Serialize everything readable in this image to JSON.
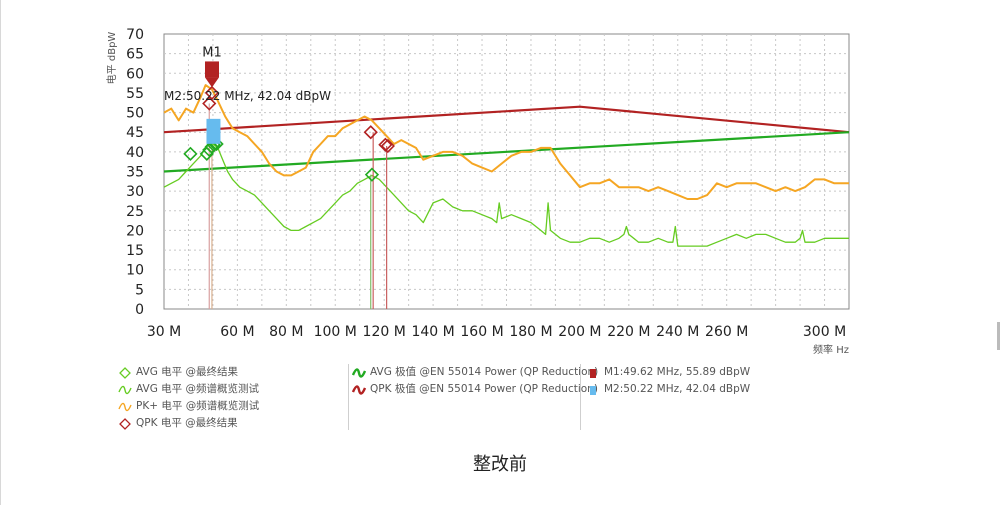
{
  "caption": "整改前",
  "chart_data": {
    "type": "line",
    "ylabel": "电平 dBpW",
    "xlabel": "频率 Hz",
    "xlim": [
      30,
      310
    ],
    "ylim": [
      0,
      70
    ],
    "x_ticks": [
      30,
      60,
      80,
      100,
      120,
      140,
      160,
      180,
      200,
      220,
      240,
      260,
      300
    ],
    "x_tick_labels": [
      "30 M",
      "60 M",
      "80 M",
      "100 M",
      "120 M",
      "140 M",
      "160 M",
      "180 M",
      "200 M",
      "220 M",
      "240 M",
      "260 M",
      "300 M"
    ],
    "y_ticks": [
      0,
      5,
      10,
      15,
      20,
      25,
      30,
      35,
      40,
      45,
      50,
      55,
      60,
      65,
      70
    ],
    "grid": true,
    "colors": {
      "avg": "#66cc22",
      "pk": "#f5a623",
      "qpk": "#b22222",
      "avg_limit": "#22aa22",
      "qp_limit": "#b22222",
      "m2": "#66bbee"
    },
    "series": [
      {
        "name": "PK+ 电平 @频谱概览测试",
        "x": [
          30,
          33,
          36,
          39,
          42,
          45,
          47,
          49.6,
          52,
          55,
          58,
          61,
          64,
          67,
          70,
          73,
          76,
          79,
          82,
          85,
          88,
          91,
          94,
          97,
          100,
          103,
          106,
          109,
          112,
          115,
          118,
          121,
          124,
          127,
          130,
          133,
          136,
          140,
          144,
          148,
          152,
          156,
          160,
          164,
          168,
          172,
          176,
          180,
          184,
          188,
          192,
          196,
          200,
          204,
          208,
          212,
          216,
          220,
          224,
          228,
          232,
          236,
          240,
          244,
          248,
          252,
          256,
          260,
          264,
          268,
          272,
          276,
          280,
          284,
          288,
          292,
          296,
          300,
          304,
          308,
          310
        ],
        "y": [
          50,
          51,
          48,
          51,
          50,
          54,
          57,
          55.9,
          53,
          49,
          46,
          45,
          44,
          42,
          40,
          37,
          35,
          34,
          34,
          35,
          36,
          40,
          42,
          44,
          44,
          46,
          47,
          48,
          49,
          48,
          46,
          44,
          42,
          43,
          42,
          41,
          38,
          39,
          40,
          40,
          39,
          37,
          36,
          35,
          37,
          39,
          40,
          40,
          41,
          41,
          37,
          34,
          31,
          32,
          32,
          33,
          31,
          31,
          31,
          30,
          31,
          30,
          29,
          28,
          28,
          29,
          32,
          31,
          32,
          32,
          32,
          31,
          30,
          31,
          30,
          31,
          33,
          33,
          32,
          32,
          32
        ]
      },
      {
        "name": "AVG 电平 @频谱概览测试",
        "x": [
          30,
          33,
          36,
          39,
          42,
          45,
          48,
          50,
          52,
          54,
          56,
          58,
          61,
          64,
          67,
          70,
          73,
          76,
          79,
          82,
          85,
          88,
          91,
          94,
          97,
          100,
          103,
          106,
          109,
          112,
          115,
          118,
          121,
          124,
          127,
          130,
          133,
          136,
          140,
          144,
          148,
          152,
          156,
          160,
          164,
          166,
          167,
          168,
          172,
          176,
          180,
          184,
          186,
          187,
          188,
          192,
          196,
          200,
          204,
          208,
          212,
          216,
          218,
          219,
          220,
          224,
          228,
          232,
          236,
          238,
          239,
          240,
          244,
          248,
          252,
          256,
          260,
          264,
          268,
          272,
          276,
          280,
          284,
          288,
          290,
          291,
          292,
          296,
          300,
          304,
          308,
          310
        ],
        "y": [
          31,
          32,
          33,
          35,
          37,
          39,
          42,
          42,
          41,
          38,
          35,
          33,
          31,
          30,
          29,
          27,
          25,
          23,
          21,
          20,
          20,
          21,
          22,
          23,
          25,
          27,
          29,
          30,
          32,
          33,
          34,
          33,
          31,
          29,
          27,
          25,
          24,
          22,
          27,
          28,
          26,
          25,
          25,
          24,
          23,
          22,
          27,
          23,
          24,
          23,
          22,
          20,
          19,
          27,
          20,
          18,
          17,
          17,
          18,
          18,
          17,
          18,
          19,
          21,
          19,
          17,
          17,
          18,
          17,
          17,
          21,
          16,
          16,
          16,
          16,
          17,
          18,
          19,
          18,
          19,
          19,
          18,
          17,
          17,
          18,
          20,
          17,
          17,
          18,
          18,
          18,
          18
        ]
      },
      {
        "name": "AVG 极值 @EN 55014 Power (QP Reduction)",
        "x": [
          30,
          310
        ],
        "y": [
          35,
          45
        ]
      },
      {
        "name": "QPK 极值 @EN 55014 Power (QP Reduction)",
        "x": [
          30,
          200,
          310
        ],
        "y": [
          45,
          51.5,
          45
        ]
      },
      {
        "name": "AVG 电平 @最终结果",
        "x": [
          47.5,
          48.5,
          49.5,
          50.3,
          51.5,
          115,
          40.8
        ],
        "y": [
          39.5,
          40.5,
          41.3,
          41.8,
          42.0,
          34.2,
          39.5
        ]
      },
      {
        "name": "QPK 电平 @最终结果",
        "x": [
          48.5,
          49.6,
          114.5,
          120.5,
          121.5
        ],
        "y": [
          52.3,
          55.0,
          45.0,
          41.8,
          41.5
        ]
      }
    ],
    "final_lines": [
      {
        "x": 48.5,
        "y": 52.3,
        "color": "#d9a0a0"
      },
      {
        "x": 49.6,
        "y": 41.3,
        "color": "#d9b090"
      },
      {
        "x": 114.5,
        "y": 34.2,
        "color": "#7fbf6a"
      },
      {
        "x": 115.5,
        "y": 45.0,
        "color": "#c96060"
      },
      {
        "x": 121,
        "y": 41.5,
        "color": "#c96060"
      }
    ],
    "markers": [
      {
        "label": "M1",
        "text": "M1:49.62 MHz, 55.89 dBpW",
        "x": 49.62,
        "y": 55.89
      },
      {
        "label": "M2",
        "text": "M2:50.22 MHz, 42.04 dBpW",
        "x": 50.22,
        "y": 42.04
      }
    ],
    "annotation": "M2:50.22 MHz, 42.04 dBpW",
    "legend": [
      {
        "name": "AVG 电平 @最终结果",
        "kind": "diamond",
        "color": "#66cc22"
      },
      {
        "name": "AVG 电平 @频谱概览测试",
        "kind": "wave",
        "color": "#66cc22"
      },
      {
        "name": "PK+ 电平 @频谱概览测试",
        "kind": "wave",
        "color": "#f5a623"
      },
      {
        "name": "QPK 电平 @最终结果",
        "kind": "diamond",
        "color": "#b22222"
      },
      {
        "name": "AVG 极值 @EN 55014 Power (QP Reduction)",
        "kind": "wavebold",
        "color": "#22aa22"
      },
      {
        "name": "QPK 极值 @EN 55014 Power (QP Reduction)",
        "kind": "wavebold",
        "color": "#b22222"
      },
      {
        "name": "M1:49.62 MHz, 55.89 dBpW",
        "kind": "bar",
        "color": "#b22222"
      },
      {
        "name": "M2:50.22 MHz, 42.04 dBpW",
        "kind": "bar",
        "color": "#66bbee"
      }
    ]
  }
}
